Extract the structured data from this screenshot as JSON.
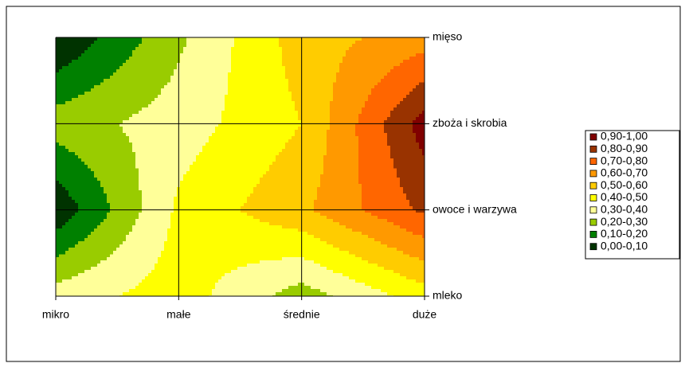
{
  "chart_data": {
    "type": "contour",
    "categories": [
      "mikro",
      "małe",
      "średnie",
      "duże"
    ],
    "y_categories": [
      "mleko",
      "owoce i warzywa",
      "zboża i skrobia",
      "mięso"
    ],
    "values": [
      [
        0.35,
        0.45,
        0.25,
        0.45
      ],
      [
        0.02,
        0.42,
        0.58,
        0.82
      ],
      [
        0.25,
        0.35,
        0.5,
        0.95
      ],
      [
        0.0,
        0.28,
        0.55,
        0.65
      ]
    ],
    "bands": [
      {
        "label": "0,90-1,00",
        "min": 0.9,
        "max": 1.0,
        "color": "#800000"
      },
      {
        "label": "0,80-0,90",
        "min": 0.8,
        "max": 0.9,
        "color": "#993300"
      },
      {
        "label": "0,70-0,80",
        "min": 0.7,
        "max": 0.8,
        "color": "#ff6600"
      },
      {
        "label": "0,60-0,70",
        "min": 0.6,
        "max": 0.7,
        "color": "#ff9900"
      },
      {
        "label": "0,50-0,60",
        "min": 0.5,
        "max": 0.6,
        "color": "#ffcc00"
      },
      {
        "label": "0,40-0,50",
        "min": 0.4,
        "max": 0.5,
        "color": "#ffff00"
      },
      {
        "label": "0,30-0,40",
        "min": 0.3,
        "max": 0.4,
        "color": "#ffff99"
      },
      {
        "label": "0,20-0,30",
        "min": 0.2,
        "max": 0.3,
        "color": "#99cc00"
      },
      {
        "label": "0,10-0,20",
        "min": 0.1,
        "max": 0.2,
        "color": "#008000"
      },
      {
        "label": "0,00-0,10",
        "min": 0.0,
        "max": 0.1,
        "color": "#003300"
      }
    ],
    "legend": "right"
  }
}
